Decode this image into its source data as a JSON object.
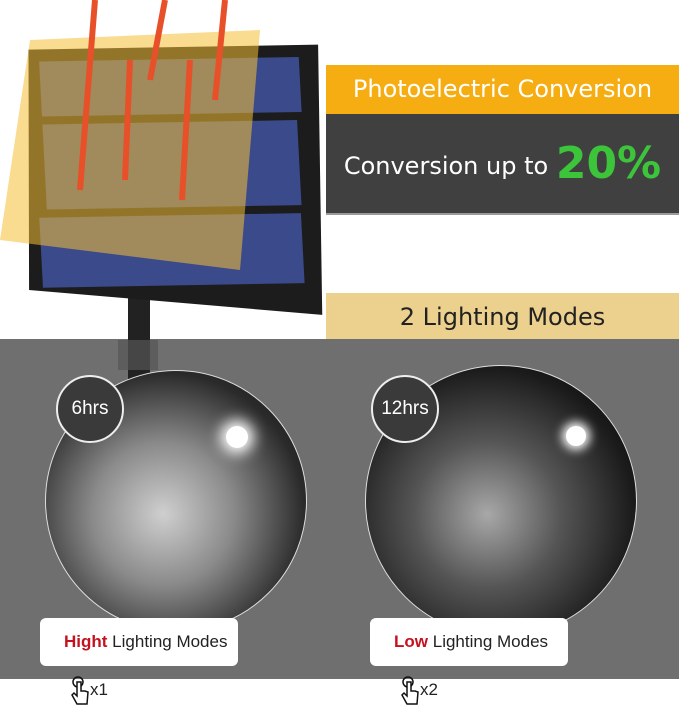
{
  "conversion": {
    "title": "Photoelectric Conversion",
    "text": "Conversion up to",
    "value": "20%"
  },
  "modes": {
    "title": "2 Lighting Modes",
    "items": [
      {
        "duration": "6hrs",
        "emphasis": "Hight",
        "label": "Lighting Modes",
        "presses": "x1"
      },
      {
        "duration": "12hrs",
        "emphasis": "Low",
        "label": "Lighting Modes",
        "presses": "x2"
      }
    ]
  },
  "colors": {
    "orange": "#f6ad12",
    "dark": "#404040",
    "green": "#3cc53a",
    "tan": "#ecd08e",
    "red": "#c4121e",
    "gray": "#6f6f6f"
  }
}
